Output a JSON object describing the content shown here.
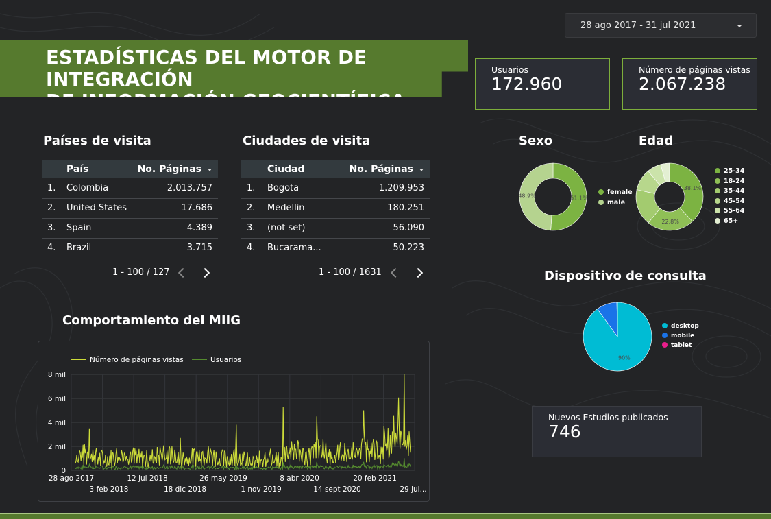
{
  "date_range": "28 ago 2017 - 31 jul 2021",
  "title_line1": "ESTADÍSTICAS DEL MOTOR DE INTEGRACIÓN",
  "title_line2": "DE INFORMACIÓN GEOCIENTÍFICA - MIIG",
  "kpis": {
    "users": {
      "label": "Usuarios",
      "value": "172.960"
    },
    "pageviews": {
      "label": "Número de páginas vistas",
      "value": "2.067.238"
    },
    "studies": {
      "label": "Nuevos Estudios publicados",
      "value": "746"
    }
  },
  "countries": {
    "title": "Países de visita",
    "col1": "País",
    "col2": "No. Páginas",
    "rows": [
      {
        "n": "1.",
        "k": "Colombia",
        "v": "2.013.757"
      },
      {
        "n": "2.",
        "k": "United States",
        "v": "17.686"
      },
      {
        "n": "3.",
        "k": "Spain",
        "v": "4.389"
      },
      {
        "n": "4.",
        "k": "Brazil",
        "v": "3.715"
      }
    ],
    "pager": "1 - 100 / 127"
  },
  "cities": {
    "title": "Ciudades de visita",
    "col1": "Ciudad",
    "col2": "No. Páginas",
    "rows": [
      {
        "n": "1.",
        "k": "Bogota",
        "v": "1.209.953"
      },
      {
        "n": "2.",
        "k": "Medellin",
        "v": "180.251"
      },
      {
        "n": "3.",
        "k": "(not set)",
        "v": "56.090"
      },
      {
        "n": "4.",
        "k": "Bucarama...",
        "v": "50.223"
      }
    ],
    "pager": "1 - 100 / 1631"
  },
  "colors": {
    "green_dark": "#7cb342",
    "green_light": "#b5d38f",
    "cyan": "#00bcd4",
    "blue": "#1a73e8",
    "pink": "#e91e8c",
    "line_yellow": "#cddc39",
    "line_green": "#558b2f",
    "banner": "#567a2e"
  },
  "chart_data": [
    {
      "type": "pie",
      "title": "Sexo",
      "labels": [
        "female",
        "male"
      ],
      "values": [
        51.1,
        48.9
      ],
      "value_labels": [
        "51.1%",
        "48.9%"
      ],
      "colors": [
        "#7cb342",
        "#b5d38f"
      ],
      "legend": "right"
    },
    {
      "type": "pie",
      "title": "Edad",
      "labels": [
        "25-34",
        "18-24",
        "35-44",
        "45-54",
        "55-64",
        "65+"
      ],
      "values": [
        38.1,
        22.8,
        17.5,
        10.5,
        6.8,
        4.3
      ],
      "value_labels": [
        "38.1%",
        "22.8%",
        "",
        "",
        "",
        ""
      ],
      "colors": [
        "#7cb342",
        "#8fbf56",
        "#a3cb6f",
        "#b7d78c",
        "#cbe3aa",
        "#e3efd2"
      ],
      "legend": "right"
    },
    {
      "type": "pie",
      "title": "Dispositivo de consulta",
      "labels": [
        "desktop",
        "mobile",
        "tablet"
      ],
      "values": [
        90,
        9.7,
        0.3
      ],
      "value_labels": [
        "90%",
        "",
        ""
      ],
      "colors": [
        "#00bcd4",
        "#1a73e8",
        "#e91e8c"
      ],
      "legend": "right"
    },
    {
      "type": "line",
      "title": "Comportamiento del MIIG",
      "series": [
        {
          "name": "Número de páginas vistas",
          "color": "#cddc39"
        },
        {
          "name": "Usuarios",
          "color": "#558b2f"
        }
      ],
      "x_ticks_top": [
        "28 ago 2017",
        "12 jul 2018",
        "26 may 2019",
        "8 abr 2020",
        "20 feb 2021"
      ],
      "x_ticks_bottom": [
        "3 feb 2018",
        "18 dic 2018",
        "1 nov 2019",
        "14 sept 2020",
        "29 jul..."
      ],
      "y_ticks": [
        "0",
        "2 mil",
        "4 mil",
        "6 mil",
        "8 mil"
      ],
      "ylim": [
        0,
        8000
      ],
      "grid": true,
      "legend": "top"
    }
  ]
}
